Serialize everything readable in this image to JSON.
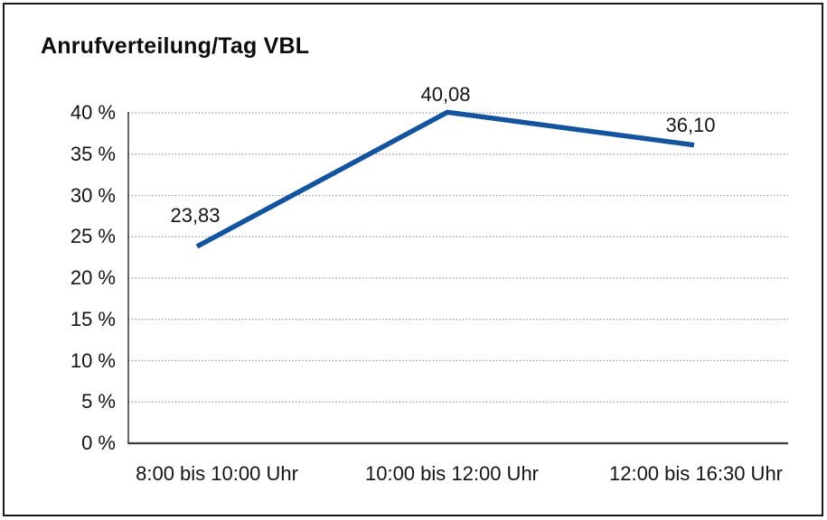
{
  "page": {
    "background": "#ffffff",
    "border_color": "#1a1a1a"
  },
  "chart_data": {
    "type": "line",
    "title": "Anrufverteilung/Tag VBL",
    "categories": [
      "8:00 bis 10:00 Uhr",
      "10:00 bis 12:00 Uhr",
      "12:00 bis 16:30 Uhr"
    ],
    "series": [
      {
        "name": "Anrufverteilung/Tag VBL",
        "values": [
          23.83,
          40.08,
          36.1
        ]
      }
    ],
    "value_labels": [
      "23,83",
      "40,08",
      "36,10"
    ],
    "y_ticks": [
      {
        "value": 0,
        "label": "0 %"
      },
      {
        "value": 5,
        "label": "5 %"
      },
      {
        "value": 10,
        "label": "10 %"
      },
      {
        "value": 15,
        "label": "15 %"
      },
      {
        "value": 20,
        "label": "20 %"
      },
      {
        "value": 25,
        "label": "25 %"
      },
      {
        "value": 30,
        "label": "30 %"
      },
      {
        "value": 35,
        "label": "35 %"
      },
      {
        "value": 40,
        "label": "40 %"
      }
    ],
    "ylim": [
      0,
      40
    ],
    "xlabel": "",
    "ylabel": "",
    "grid": "horizontal-dotted",
    "legend": "none",
    "colors": {
      "line": "#14539D",
      "axis": "#3d3d3d",
      "grid": "#8a8a8a",
      "text": "#141414"
    }
  }
}
